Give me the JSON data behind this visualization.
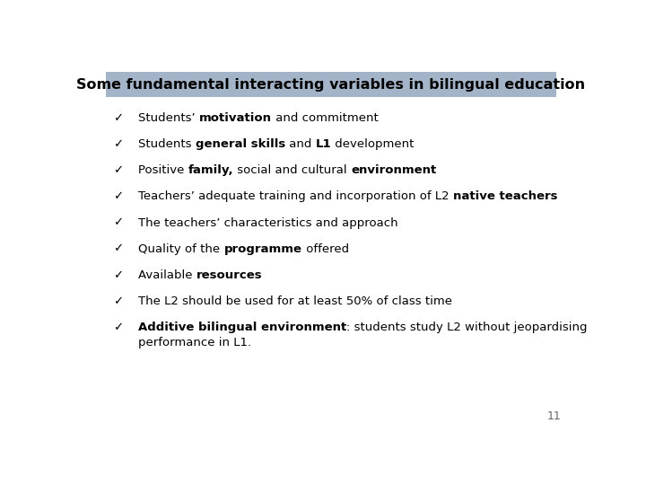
{
  "title": "Some fundamental interacting variables in bilingual education",
  "title_bg_color": "#a4b4c8",
  "title_font_size": 11.5,
  "background_color": "#ffffff",
  "bullet_char": "✓",
  "bullet_color": "#000000",
  "items": [
    {
      "parts": [
        {
          "text": "Students’ ",
          "bold": false
        },
        {
          "text": "motivation",
          "bold": true
        },
        {
          "text": " and commitment",
          "bold": false
        }
      ]
    },
    {
      "parts": [
        {
          "text": "Students ",
          "bold": false
        },
        {
          "text": "general skills",
          "bold": true
        },
        {
          "text": " and ",
          "bold": false
        },
        {
          "text": "L1",
          "bold": true
        },
        {
          "text": " development",
          "bold": false
        }
      ]
    },
    {
      "parts": [
        {
          "text": "Positive ",
          "bold": false
        },
        {
          "text": "family,",
          "bold": true
        },
        {
          "text": " social and cultural ",
          "bold": false
        },
        {
          "text": "environment",
          "bold": true
        }
      ]
    },
    {
      "parts": [
        {
          "text": "Teachers’ adequate training and incorporation of L2 ",
          "bold": false
        },
        {
          "text": "native teachers",
          "bold": true
        }
      ]
    },
    {
      "parts": [
        {
          "text": "The teachers’ characteristics and approach",
          "bold": false
        }
      ]
    },
    {
      "parts": [
        {
          "text": "Quality of the ",
          "bold": false
        },
        {
          "text": "programme",
          "bold": true
        },
        {
          "text": " offered",
          "bold": false
        }
      ]
    },
    {
      "parts": [
        {
          "text": "Available ",
          "bold": false
        },
        {
          "text": "resources",
          "bold": true
        }
      ]
    },
    {
      "parts": [
        {
          "text": "The L2 should be used for at least 50% of class time",
          "bold": false
        }
      ]
    },
    {
      "parts": [
        {
          "text": "Additive bilingual environment",
          "bold": true
        },
        {
          "text": ": students study L2 without jeopardising",
          "bold": false
        }
      ],
      "continuation": "performance in L1."
    }
  ],
  "page_number": "11",
  "font_size": 9.5
}
